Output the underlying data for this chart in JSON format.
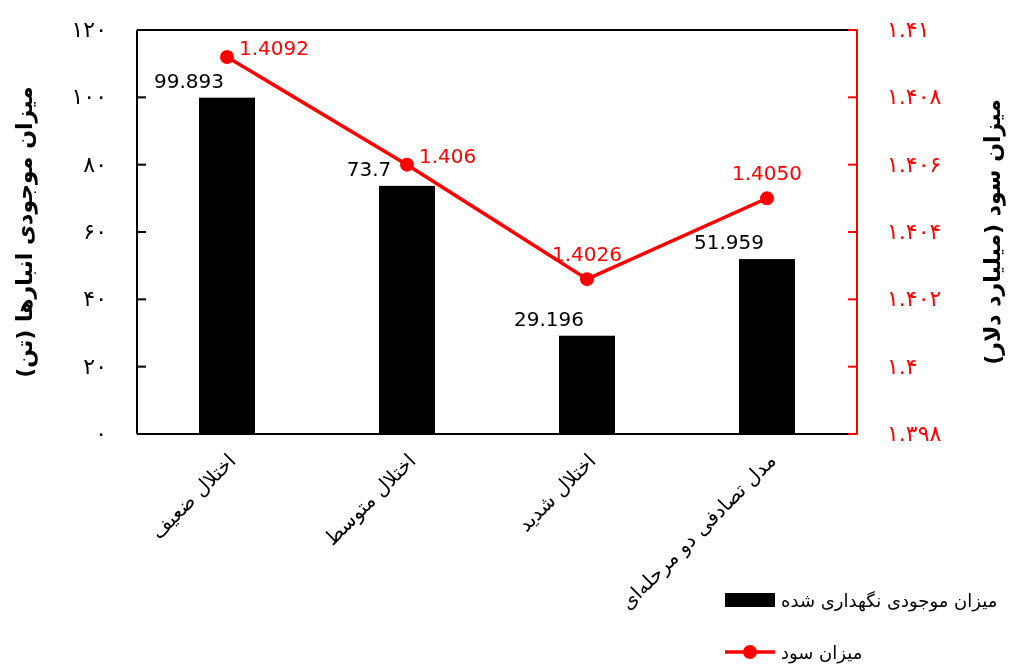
{
  "chart_data": {
    "type": "bar",
    "ylabel": "میزان موجودی انبارها (تن)",
    "y2label": "میزان سود (میلیارد دلار)",
    "categories": [
      "اختلال ضعیف",
      "اختلال متوسط",
      "اختلال شدید",
      "مدل تصادفی دو مرحله‌ای"
    ],
    "series": [
      {
        "name": "میزان موجودی نگهداری شده",
        "color": "#000000",
        "values": [
          99.893,
          73.7,
          29.196,
          51.959
        ],
        "value_labels": [
          "99.893",
          "73.7",
          "29.196",
          "51.959"
        ]
      },
      {
        "name": "میزان سود",
        "type": "line",
        "axis": "y2",
        "color": "#ff0000",
        "marker": "circle",
        "values": [
          1.4092,
          1.406,
          1.4026,
          1.405
        ],
        "value_labels": [
          "1.4092",
          "1.406",
          "1.4026",
          "1.4050"
        ]
      }
    ],
    "ylim": [
      0,
      120
    ],
    "yticks": [
      {
        "value": 0,
        "label": "۰"
      },
      {
        "value": 20,
        "label": "۲۰"
      },
      {
        "value": 40,
        "label": "۴۰"
      },
      {
        "value": 60,
        "label": "۶۰"
      },
      {
        "value": 80,
        "label": "۸۰"
      },
      {
        "value": 100,
        "label": "۱۰۰"
      },
      {
        "value": 120,
        "label": "۱۲۰"
      }
    ],
    "y2lim": [
      1.398,
      1.41
    ],
    "y2ticks": [
      {
        "value": 1.398,
        "label": "۱.۳۹۸"
      },
      {
        "value": 1.4,
        "label": "۱.۴"
      },
      {
        "value": 1.402,
        "label": "۱.۴۰۲"
      },
      {
        "value": 1.404,
        "label": "۱.۴۰۴"
      },
      {
        "value": 1.406,
        "label": "۱.۴۰۶"
      },
      {
        "value": 1.408,
        "label": "۱.۴۰۸"
      },
      {
        "value": 1.41,
        "label": "۱.۴۱"
      }
    ],
    "grid": false,
    "legend": "bottom right"
  }
}
